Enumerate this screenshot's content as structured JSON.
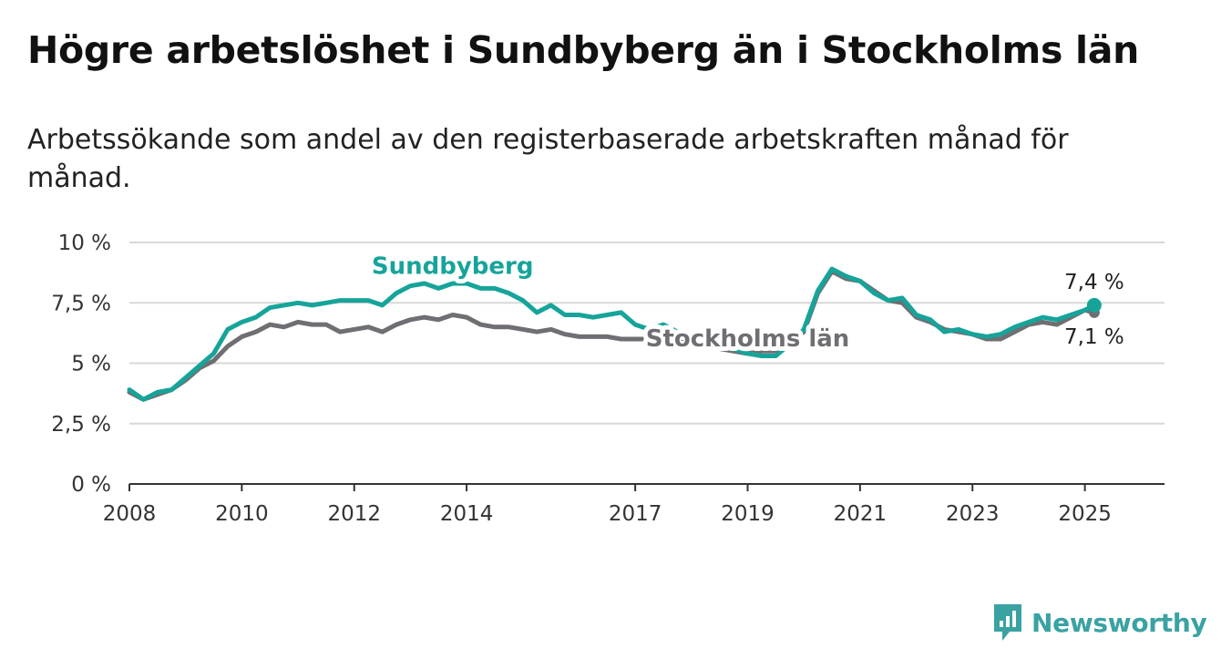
{
  "title": "Högre arbetslöshet i Sundbyberg än i Stockholms län",
  "subtitle": "Arbetssökande som andel av den registerbaserade arbetskraften månad för månad.",
  "brand": {
    "name": "Newsworthy"
  },
  "colors": {
    "sundbyberg": "#16a49a",
    "stockholm": "#6f6f73",
    "grid": "#d8d8d8",
    "axis": "#333333"
  },
  "chart_data": {
    "type": "line",
    "title": "Högre arbetslöshet i Sundbyberg än i Stockholms län",
    "subtitle": "Arbetssökande som andel av den registerbaserade arbetskraften månad för månad.",
    "xlabel": "",
    "ylabel": "",
    "xlim": [
      "2008-01",
      "2026-06"
    ],
    "ylim": [
      0,
      10
    ],
    "grid": true,
    "x_ticks": [
      {
        "value": "2008-01",
        "label": "2008"
      },
      {
        "value": "2010-01",
        "label": "2010"
      },
      {
        "value": "2012-01",
        "label": "2012"
      },
      {
        "value": "2014-01",
        "label": "2014"
      },
      {
        "value": "2017-01",
        "label": "2017"
      },
      {
        "value": "2019-01",
        "label": "2019"
      },
      {
        "value": "2021-01",
        "label": "2021"
      },
      {
        "value": "2023-01",
        "label": "2023"
      },
      {
        "value": "2025-01",
        "label": "2025"
      }
    ],
    "y_ticks": [
      {
        "value": 0,
        "label": "0 %"
      },
      {
        "value": 2.5,
        "label": "2,5 %"
      },
      {
        "value": 5,
        "label": "5 %"
      },
      {
        "value": 7.5,
        "label": "7,5 %"
      },
      {
        "value": 10,
        "label": "10 %"
      }
    ],
    "series": [
      {
        "name": "Stockholms län",
        "color": "#6f6f73",
        "end_label": "7,1 %",
        "points": [
          [
            "2008-01",
            3.8
          ],
          [
            "2008-04",
            3.5
          ],
          [
            "2008-07",
            3.7
          ],
          [
            "2008-10",
            3.9
          ],
          [
            "2009-01",
            4.3
          ],
          [
            "2009-04",
            4.8
          ],
          [
            "2009-07",
            5.1
          ],
          [
            "2009-10",
            5.7
          ],
          [
            "2010-01",
            6.1
          ],
          [
            "2010-04",
            6.3
          ],
          [
            "2010-07",
            6.6
          ],
          [
            "2010-10",
            6.5
          ],
          [
            "2011-01",
            6.7
          ],
          [
            "2011-04",
            6.6
          ],
          [
            "2011-07",
            6.6
          ],
          [
            "2011-10",
            6.3
          ],
          [
            "2012-01",
            6.4
          ],
          [
            "2012-04",
            6.5
          ],
          [
            "2012-07",
            6.3
          ],
          [
            "2012-10",
            6.6
          ],
          [
            "2013-01",
            6.8
          ],
          [
            "2013-04",
            6.9
          ],
          [
            "2013-07",
            6.8
          ],
          [
            "2013-10",
            7.0
          ],
          [
            "2014-01",
            6.9
          ],
          [
            "2014-04",
            6.6
          ],
          [
            "2014-07",
            6.5
          ],
          [
            "2014-10",
            6.5
          ],
          [
            "2015-01",
            6.4
          ],
          [
            "2015-04",
            6.3
          ],
          [
            "2015-07",
            6.4
          ],
          [
            "2015-10",
            6.2
          ],
          [
            "2016-01",
            6.1
          ],
          [
            "2016-04",
            6.1
          ],
          [
            "2016-07",
            6.1
          ],
          [
            "2016-10",
            6.0
          ],
          [
            "2017-01",
            6.0
          ],
          [
            "2017-04",
            6.0
          ],
          [
            "2017-07",
            6.1
          ],
          [
            "2017-10",
            5.9
          ],
          [
            "2018-01",
            5.8
          ],
          [
            "2018-04",
            5.7
          ],
          [
            "2018-07",
            5.6
          ],
          [
            "2018-10",
            5.5
          ],
          [
            "2019-01",
            5.4
          ],
          [
            "2019-04",
            5.5
          ],
          [
            "2019-07",
            5.5
          ],
          [
            "2019-10",
            5.9
          ],
          [
            "2020-01",
            6.3
          ],
          [
            "2020-04",
            7.9
          ],
          [
            "2020-07",
            8.8
          ],
          [
            "2020-10",
            8.5
          ],
          [
            "2021-01",
            8.4
          ],
          [
            "2021-04",
            8.0
          ],
          [
            "2021-07",
            7.6
          ],
          [
            "2021-10",
            7.5
          ],
          [
            "2022-01",
            6.9
          ],
          [
            "2022-04",
            6.7
          ],
          [
            "2022-07",
            6.4
          ],
          [
            "2022-10",
            6.3
          ],
          [
            "2023-01",
            6.2
          ],
          [
            "2023-04",
            6.0
          ],
          [
            "2023-07",
            6.0
          ],
          [
            "2023-10",
            6.3
          ],
          [
            "2024-01",
            6.6
          ],
          [
            "2024-04",
            6.7
          ],
          [
            "2024-07",
            6.6
          ],
          [
            "2024-10",
            6.9
          ],
          [
            "2025-01",
            7.2
          ],
          [
            "2025-03",
            7.1
          ]
        ]
      },
      {
        "name": "Sundbyberg",
        "color": "#16a49a",
        "end_label": "7,4 %",
        "points": [
          [
            "2008-01",
            3.9
          ],
          [
            "2008-04",
            3.5
          ],
          [
            "2008-07",
            3.8
          ],
          [
            "2008-10",
            3.9
          ],
          [
            "2009-01",
            4.4
          ],
          [
            "2009-04",
            4.9
          ],
          [
            "2009-07",
            5.4
          ],
          [
            "2009-10",
            6.4
          ],
          [
            "2010-01",
            6.7
          ],
          [
            "2010-04",
            6.9
          ],
          [
            "2010-07",
            7.3
          ],
          [
            "2010-10",
            7.4
          ],
          [
            "2011-01",
            7.5
          ],
          [
            "2011-04",
            7.4
          ],
          [
            "2011-07",
            7.5
          ],
          [
            "2011-10",
            7.6
          ],
          [
            "2012-01",
            7.6
          ],
          [
            "2012-04",
            7.6
          ],
          [
            "2012-07",
            7.4
          ],
          [
            "2012-10",
            7.9
          ],
          [
            "2013-01",
            8.2
          ],
          [
            "2013-04",
            8.3
          ],
          [
            "2013-07",
            8.1
          ],
          [
            "2013-10",
            8.3
          ],
          [
            "2014-01",
            8.3
          ],
          [
            "2014-04",
            8.1
          ],
          [
            "2014-07",
            8.1
          ],
          [
            "2014-10",
            7.9
          ],
          [
            "2015-01",
            7.6
          ],
          [
            "2015-04",
            7.1
          ],
          [
            "2015-07",
            7.4
          ],
          [
            "2015-10",
            7.0
          ],
          [
            "2016-01",
            7.0
          ],
          [
            "2016-04",
            6.9
          ],
          [
            "2016-07",
            7.0
          ],
          [
            "2016-10",
            7.1
          ],
          [
            "2017-01",
            6.6
          ],
          [
            "2017-04",
            6.4
          ],
          [
            "2017-07",
            6.6
          ],
          [
            "2017-10",
            6.3
          ],
          [
            "2018-01",
            6.1
          ],
          [
            "2018-04",
            5.9
          ],
          [
            "2018-07",
            5.7
          ],
          [
            "2018-10",
            5.6
          ],
          [
            "2019-01",
            5.4
          ],
          [
            "2019-04",
            5.3
          ],
          [
            "2019-07",
            5.3
          ],
          [
            "2019-10",
            5.8
          ],
          [
            "2020-01",
            6.4
          ],
          [
            "2020-04",
            8.0
          ],
          [
            "2020-07",
            8.9
          ],
          [
            "2020-10",
            8.6
          ],
          [
            "2021-01",
            8.4
          ],
          [
            "2021-04",
            7.9
          ],
          [
            "2021-07",
            7.6
          ],
          [
            "2021-10",
            7.7
          ],
          [
            "2022-01",
            7.0
          ],
          [
            "2022-04",
            6.8
          ],
          [
            "2022-07",
            6.3
          ],
          [
            "2022-10",
            6.4
          ],
          [
            "2023-01",
            6.2
          ],
          [
            "2023-04",
            6.1
          ],
          [
            "2023-07",
            6.2
          ],
          [
            "2023-10",
            6.5
          ],
          [
            "2024-01",
            6.7
          ],
          [
            "2024-04",
            6.9
          ],
          [
            "2024-07",
            6.8
          ],
          [
            "2024-10",
            7.0
          ],
          [
            "2025-01",
            7.2
          ],
          [
            "2025-03",
            7.4
          ]
        ]
      }
    ],
    "series_labels": [
      {
        "series": "Sundbyberg",
        "text": "Sundbyberg",
        "at": "2013-10",
        "value": 8.7
      },
      {
        "series": "Stockholms län",
        "text": "Stockholms län",
        "at": "2019-01",
        "value": 5.7
      }
    ]
  }
}
